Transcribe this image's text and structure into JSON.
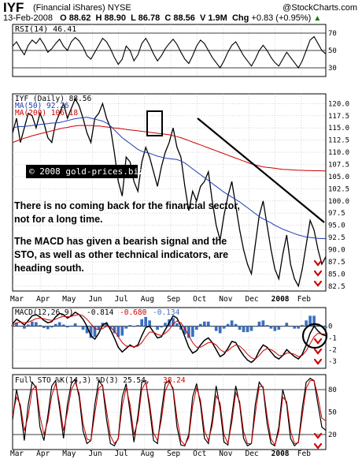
{
  "header": {
    "symbol": "IYF",
    "name": "(Financial iShares) NYSE",
    "brand": "@StockCharts.com",
    "date": "13-Feb-2008",
    "open": "O 88.62",
    "high": "H 88.90",
    "low": "L 86.78",
    "close": "C 88.56",
    "volume": "V 1.9M",
    "change_label": "Chg",
    "change": "+0.83 (+0.95%)",
    "change_arrow": "▲"
  },
  "watermark": "© 2008 gold-prices.biz",
  "annotation": {
    "paragraph1": "There is no coming back for the financial sector, not for a long time.",
    "paragraph2": "The MACD has given a bearish signal and the STO, as well as other technical indicators, are heading south."
  },
  "months": [
    "Mar",
    "Apr",
    "May",
    "Jun",
    "Jul",
    "Aug",
    "Sep",
    "Oct",
    "Nov",
    "Dec",
    "2008",
    "Feb"
  ],
  "colors": {
    "price": "#000000",
    "ma50": "#1f3fb0",
    "ma200": "#cc0000",
    "hist": "#3a6fc0",
    "arrows": "#cc0000"
  },
  "chart_data": [
    {
      "type": "line",
      "legend": "RSI(14) 46.41",
      "ylim": [
        20,
        80
      ],
      "yticks": [
        70,
        50,
        30
      ],
      "guides": [
        70,
        50,
        30
      ],
      "x": [
        0,
        10,
        20,
        30,
        40,
        50,
        60,
        70,
        80,
        90,
        100,
        110,
        120,
        130,
        140,
        150,
        160,
        170,
        180,
        190,
        200,
        210,
        220,
        230,
        240,
        250,
        260,
        270,
        280,
        290,
        300,
        310,
        320,
        330,
        340,
        350,
        360,
        370,
        380,
        390,
        400,
        410,
        420,
        430,
        440,
        450,
        460,
        470,
        480,
        490,
        500,
        510,
        520,
        530,
        540,
        550,
        560,
        570,
        580,
        590,
        600,
        610,
        620,
        630,
        640,
        650,
        660,
        670,
        680,
        690,
        700,
        710,
        720,
        730,
        740,
        750,
        760,
        770,
        780,
        790,
        800
      ],
      "series": [
        {
          "values": [
            55,
            60,
            52,
            45,
            56,
            62,
            58,
            64,
            57,
            48,
            52,
            58,
            63,
            55,
            50,
            60,
            65,
            61,
            54,
            44,
            40,
            48,
            56,
            64,
            60,
            52,
            42,
            34,
            40,
            55,
            50,
            38,
            45,
            58,
            64,
            56,
            46,
            38,
            44,
            52,
            58,
            63,
            57,
            48,
            40,
            35,
            44,
            55,
            62,
            58,
            50,
            42,
            36,
            30,
            38,
            48,
            56,
            60,
            52,
            44,
            38,
            32,
            40,
            50,
            56,
            50,
            42,
            36,
            32,
            40,
            48,
            42,
            36,
            30,
            38,
            50,
            62,
            66,
            58,
            50,
            46
          ]
        }
      ]
    },
    {
      "type": "line",
      "legend": [
        "IYF (Daily) 88.56",
        "MA(50) 92.26",
        "MA(200) 106.18"
      ],
      "ylim": [
        81.5,
        122
      ],
      "yticks": [
        120.0,
        117.5,
        115.0,
        112.5,
        110.0,
        107.5,
        105.0,
        102.5,
        100.0,
        97.5,
        95.0,
        92.5,
        90.0,
        87.5,
        85.0,
        82.5
      ],
      "x": [
        0,
        10,
        20,
        30,
        40,
        50,
        60,
        70,
        80,
        90,
        100,
        110,
        120,
        130,
        140,
        150,
        160,
        170,
        180,
        190,
        200,
        210,
        220,
        230,
        240,
        250,
        260,
        270,
        280,
        290,
        300,
        310,
        320,
        330,
        340,
        350,
        360,
        370,
        380,
        390,
        400,
        410,
        420,
        430,
        440,
        450,
        460,
        470,
        480,
        490,
        500,
        510,
        520,
        530,
        540,
        550,
        560,
        570,
        580,
        590,
        600,
        610,
        620,
        630,
        640,
        650,
        660,
        670,
        680,
        690,
        700,
        710,
        720,
        730,
        740,
        750,
        760,
        770,
        780,
        790,
        800
      ],
      "series": [
        {
          "name": "IYF (Daily) 88.56",
          "values": [
            114,
            117,
            112,
            115,
            118,
            117.5,
            115,
            118,
            116,
            113,
            112,
            116,
            118,
            120,
            117,
            119,
            121,
            119.5,
            117,
            114,
            112,
            117,
            118,
            120,
            117,
            115,
            110,
            104,
            101,
            109,
            108,
            104,
            102,
            108,
            111,
            109,
            106,
            103,
            107,
            110,
            112,
            115,
            111,
            109,
            103,
            98,
            102,
            100,
            103,
            104,
            106,
            100,
            95,
            92,
            97,
            101,
            104,
            99,
            94,
            90,
            87,
            85,
            91,
            97,
            100,
            95,
            90,
            86,
            84,
            89,
            93,
            87,
            84,
            82.5,
            86,
            91,
            96,
            94,
            90,
            87,
            88.56
          ]
        },
        {
          "name": "MA(50) 92.26",
          "values": [
            115,
            115.2,
            115.3,
            115.3,
            115.4,
            115.5,
            115.6,
            115.7,
            115.8,
            115.9,
            116,
            116,
            116.1,
            116.3,
            116.5,
            116.7,
            116.9,
            117,
            117.1,
            117.2,
            117,
            116.8,
            116.6,
            116.4,
            116,
            115.4,
            114.6,
            113.8,
            113,
            112.4,
            111.8,
            111.2,
            110.6,
            110.2,
            110,
            109.8,
            109.5,
            109.2,
            109,
            108.8,
            108.7,
            108.6,
            108.5,
            108.2,
            107.8,
            107.2,
            106.6,
            106,
            105.4,
            104.8,
            104.2,
            103.6,
            103,
            102.4,
            101.8,
            101.3,
            100.8,
            100.3,
            99.8,
            99.2,
            98.6,
            98,
            97.4,
            96.8,
            96.3,
            95.9,
            95.5,
            95,
            94.6,
            94.2,
            93.9,
            93.6,
            93.3,
            93,
            92.8,
            92.6,
            92.5,
            92.4,
            92.3,
            92.28,
            92.26
          ]
        },
        {
          "name": "MA(200) 106.18",
          "values": [
            112,
            112.3,
            112.6,
            112.9,
            113.1,
            113.4,
            113.6,
            113.8,
            114,
            114.2,
            114.4,
            114.6,
            114.8,
            115,
            115.1,
            115.3,
            115.4,
            115.5,
            115.5,
            115.5,
            115.5,
            115.4,
            115.4,
            115.3,
            115.2,
            115.1,
            115,
            114.9,
            114.8,
            114.7,
            114.6,
            114.5,
            114.4,
            114.3,
            114.2,
            114.1,
            114,
            113.9,
            113.8,
            113.7,
            113.6,
            113.4,
            113.2,
            113,
            112.7,
            112.4,
            112.1,
            111.8,
            111.5,
            111.2,
            110.9,
            110.6,
            110.3,
            110,
            109.7,
            109.4,
            109.1,
            108.8,
            108.5,
            108.2,
            107.9,
            107.6,
            107.4,
            107.2,
            107,
            106.9,
            106.8,
            106.7,
            106.6,
            106.5,
            106.45,
            106.4,
            106.35,
            106.3,
            106.28,
            106.25,
            106.23,
            106.21,
            106.2,
            106.19,
            106.18
          ]
        }
      ]
    },
    {
      "type": "line",
      "legend": [
        "MACD(12,26,9)",
        "-0.814",
        "-0.680",
        "-0.134"
      ],
      "ylim": [
        -3.6,
        1.6
      ],
      "yticks": [
        0,
        -1,
        -2,
        -3
      ],
      "zero_line": 0,
      "x": [
        0,
        10,
        20,
        30,
        40,
        50,
        60,
        70,
        80,
        90,
        100,
        110,
        120,
        130,
        140,
        150,
        160,
        170,
        180,
        190,
        200,
        210,
        220,
        230,
        240,
        250,
        260,
        270,
        280,
        290,
        300,
        310,
        320,
        330,
        340,
        350,
        360,
        370,
        380,
        390,
        400,
        410,
        420,
        430,
        440,
        450,
        460,
        470,
        480,
        490,
        500,
        510,
        520,
        530,
        540,
        550,
        560,
        570,
        580,
        590,
        600,
        610,
        620,
        630,
        640,
        650,
        660,
        670,
        680,
        690,
        700,
        710,
        720,
        730,
        740,
        750,
        760,
        770,
        780,
        790,
        800
      ],
      "series": [
        {
          "name": "MACD",
          "values": [
            0.2,
            0.6,
            0.4,
            0.1,
            0.5,
            0.9,
            1.0,
            0.8,
            0.5,
            0.3,
            0.4,
            0.8,
            1.1,
            1.0,
            0.7,
            0.9,
            1.2,
            1.0,
            0.6,
            0.0,
            -0.8,
            -1.1,
            -0.6,
            0.1,
            0.3,
            -0.3,
            -1.0,
            -1.8,
            -2.2,
            -1.9,
            -1.6,
            -1.8,
            -1.6,
            -0.8,
            -0.1,
            0.0,
            -0.5,
            -1.0,
            -0.9,
            -0.3,
            0.3,
            0.9,
            0.7,
            0.0,
            -0.9,
            -1.8,
            -2.3,
            -2.1,
            -1.6,
            -1.2,
            -1.0,
            -1.4,
            -2.0,
            -2.6,
            -2.4,
            -1.9,
            -1.3,
            -1.4,
            -2.0,
            -2.5,
            -2.9,
            -3.1,
            -2.8,
            -2.1,
            -1.6,
            -1.8,
            -2.2,
            -2.6,
            -2.8,
            -2.5,
            -2.0,
            -2.3,
            -2.6,
            -2.8,
            -2.4,
            -1.6,
            -0.6,
            0.0,
            -0.4,
            -0.7,
            -0.81
          ]
        },
        {
          "name": "Signal",
          "values": [
            0.1,
            0.3,
            0.35,
            0.3,
            0.35,
            0.5,
            0.65,
            0.7,
            0.65,
            0.55,
            0.5,
            0.6,
            0.75,
            0.85,
            0.8,
            0.85,
            0.95,
            1.0,
            0.9,
            0.6,
            0.2,
            -0.2,
            -0.3,
            -0.2,
            0.0,
            -0.1,
            -0.4,
            -0.9,
            -1.4,
            -1.7,
            -1.7,
            -1.75,
            -1.7,
            -1.4,
            -0.9,
            -0.5,
            -0.5,
            -0.7,
            -0.8,
            -0.6,
            -0.3,
            0.2,
            0.45,
            0.3,
            -0.2,
            -0.8,
            -1.4,
            -1.8,
            -1.8,
            -1.6,
            -1.4,
            -1.4,
            -1.6,
            -2.0,
            -2.2,
            -2.1,
            -1.8,
            -1.6,
            -1.7,
            -2.0,
            -2.4,
            -2.7,
            -2.8,
            -2.5,
            -2.1,
            -1.9,
            -2.0,
            -2.2,
            -2.5,
            -2.5,
            -2.3,
            -2.3,
            -2.4,
            -2.6,
            -2.5,
            -2.1,
            -1.5,
            -0.9,
            -0.6,
            -0.65,
            -0.68
          ]
        }
      ],
      "histogram": [
        0.1,
        0.3,
        0.05,
        -0.2,
        0.15,
        0.4,
        0.35,
        0.1,
        -0.15,
        -0.25,
        -0.1,
        0.2,
        0.35,
        0.15,
        -0.1,
        0.05,
        0.25,
        0.0,
        -0.3,
        -0.6,
        -1.0,
        -0.9,
        -0.3,
        0.3,
        0.3,
        -0.2,
        -0.6,
        -0.9,
        -0.8,
        -0.2,
        0.1,
        -0.05,
        0.1,
        0.6,
        0.8,
        0.5,
        0.0,
        -0.3,
        -0.1,
        0.3,
        0.6,
        0.7,
        0.25,
        -0.3,
        -0.7,
        -1.0,
        -0.9,
        -0.3,
        0.2,
        0.4,
        0.4,
        0.0,
        -0.4,
        -0.6,
        -0.2,
        0.2,
        0.5,
        0.2,
        -0.3,
        -0.5,
        -0.5,
        -0.4,
        0.0,
        0.4,
        0.5,
        0.1,
        -0.2,
        -0.4,
        -0.3,
        0.0,
        0.3,
        0.0,
        -0.2,
        -0.2,
        0.1,
        0.5,
        0.9,
        0.9,
        0.2,
        -0.05,
        -0.134
      ]
    },
    {
      "type": "line",
      "legend": [
        "Full STO %K(14,3) %D(3) 25.54,",
        "38.24"
      ],
      "ylim": [
        0,
        100
      ],
      "yticks": [
        80,
        50,
        20
      ],
      "guides": [
        80,
        20
      ],
      "x": [
        0,
        10,
        20,
        30,
        40,
        50,
        60,
        70,
        80,
        90,
        100,
        110,
        120,
        130,
        140,
        150,
        160,
        170,
        180,
        190,
        200,
        210,
        220,
        230,
        240,
        250,
        260,
        270,
        280,
        290,
        300,
        310,
        320,
        330,
        340,
        350,
        360,
        370,
        380,
        390,
        400,
        410,
        420,
        430,
        440,
        450,
        460,
        470,
        480,
        490,
        500,
        510,
        520,
        530,
        540,
        550,
        560,
        570,
        580,
        590,
        600,
        610,
        620,
        630,
        640,
        650,
        660,
        670,
        680,
        690,
        700,
        710,
        720,
        730,
        740,
        750,
        760,
        770,
        780,
        790,
        800
      ],
      "series": [
        {
          "name": "%K",
          "values": [
            40,
            80,
            55,
            12,
            60,
            90,
            82,
            30,
            12,
            45,
            85,
            92,
            55,
            15,
            60,
            88,
            94,
            70,
            25,
            8,
            12,
            60,
            92,
            85,
            40,
            8,
            5,
            15,
            70,
            88,
            50,
            10,
            45,
            90,
            92,
            55,
            12,
            8,
            50,
            88,
            92,
            80,
            30,
            6,
            5,
            20,
            70,
            88,
            60,
            15,
            8,
            40,
            85,
            55,
            10,
            6,
            45,
            85,
            60,
            15,
            5,
            8,
            60,
            90,
            82,
            35,
            8,
            5,
            30,
            80,
            60,
            15,
            5,
            10,
            55,
            90,
            95,
            92,
            60,
            30,
            25.54
          ]
        },
        {
          "name": "%D",
          "values": [
            45,
            70,
            60,
            25,
            45,
            80,
            85,
            45,
            20,
            38,
            72,
            88,
            62,
            25,
            50,
            80,
            90,
            75,
            35,
            14,
            12,
            48,
            82,
            86,
            52,
            18,
            8,
            14,
            58,
            82,
            60,
            20,
            38,
            80,
            90,
            62,
            22,
            12,
            40,
            78,
            90,
            82,
            42,
            12,
            6,
            16,
            58,
            82,
            66,
            25,
            12,
            32,
            72,
            62,
            20,
            8,
            36,
            76,
            64,
            24,
            8,
            8,
            48,
            84,
            84,
            45,
            14,
            6,
            24,
            70,
            64,
            25,
            8,
            9,
            45,
            82,
            92,
            92,
            70,
            42,
            38.24
          ]
        }
      ]
    }
  ]
}
